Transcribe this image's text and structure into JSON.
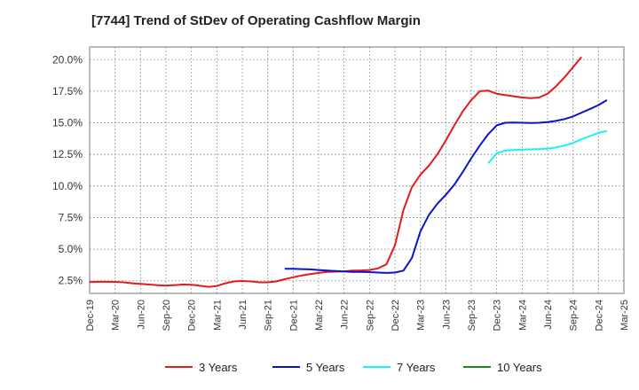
{
  "chart_data": {
    "type": "line",
    "title": "[7744]  Trend of StDev of Operating Cashflow Margin",
    "xlabel": "",
    "ylabel": "",
    "x_ticks": [
      "Dec-19",
      "Mar-20",
      "Jun-20",
      "Sep-20",
      "Dec-20",
      "Mar-21",
      "Jun-21",
      "Sep-21",
      "Dec-21",
      "Mar-22",
      "Jun-22",
      "Sep-22",
      "Dec-22",
      "Mar-23",
      "Jun-23",
      "Sep-23",
      "Dec-23",
      "Mar-24",
      "Jun-24",
      "Sep-24",
      "Dec-24",
      "Mar-25"
    ],
    "y_ticks": [
      2.5,
      5.0,
      7.5,
      10.0,
      12.5,
      15.0,
      17.5,
      20.0
    ],
    "y_tick_labels": [
      "2.5%",
      "5.0%",
      "7.5%",
      "10.0%",
      "12.5%",
      "15.0%",
      "17.5%",
      "20.0%"
    ],
    "ylim": [
      1.5,
      21.0
    ],
    "grid": true,
    "legend_position": "bottom",
    "series": [
      {
        "name": "3 Years",
        "color": "#e41a1c",
        "start": "Dec-19",
        "values": [
          2.4,
          2.42,
          2.42,
          2.41,
          2.38,
          2.3,
          2.25,
          2.2,
          2.15,
          2.12,
          2.15,
          2.2,
          2.18,
          2.1,
          2.02,
          2.08,
          2.3,
          2.45,
          2.48,
          2.45,
          2.38,
          2.38,
          2.45,
          2.62,
          2.78,
          2.92,
          3.02,
          3.12,
          3.2,
          3.22,
          3.25,
          3.3,
          3.32,
          3.35,
          3.48,
          3.8,
          5.3,
          8.1,
          9.9,
          10.9,
          11.6,
          12.5,
          13.6,
          14.8,
          15.9,
          16.8,
          17.5,
          17.55,
          17.3,
          17.2,
          17.1,
          17.0,
          16.95,
          17.0,
          17.3,
          17.9,
          18.6,
          19.4,
          20.2
        ]
      },
      {
        "name": "5 Years",
        "color": "#0a14cc",
        "start": "Nov-21",
        "values": [
          3.45,
          3.45,
          3.42,
          3.4,
          3.35,
          3.3,
          3.27,
          3.23,
          3.2,
          3.2,
          3.18,
          3.15,
          3.12,
          3.15,
          3.3,
          4.3,
          6.4,
          7.7,
          8.6,
          9.3,
          10.1,
          11.1,
          12.2,
          13.2,
          14.1,
          14.8,
          15.0,
          15.02,
          15.0,
          14.98,
          15.0,
          15.05,
          15.15,
          15.3,
          15.5,
          15.8,
          16.1,
          16.4,
          16.8
        ]
      },
      {
        "name": "7 Years",
        "color": "#1cf0f0",
        "start": "Nov-23",
        "values": [
          11.8,
          12.6,
          12.8,
          12.85,
          12.88,
          12.9,
          12.92,
          12.95,
          13.05,
          13.2,
          13.4,
          13.7,
          13.95,
          14.2,
          14.35
        ]
      },
      {
        "name": "10 Years",
        "color": "#1a8a1a",
        "start": "",
        "values": []
      }
    ]
  }
}
